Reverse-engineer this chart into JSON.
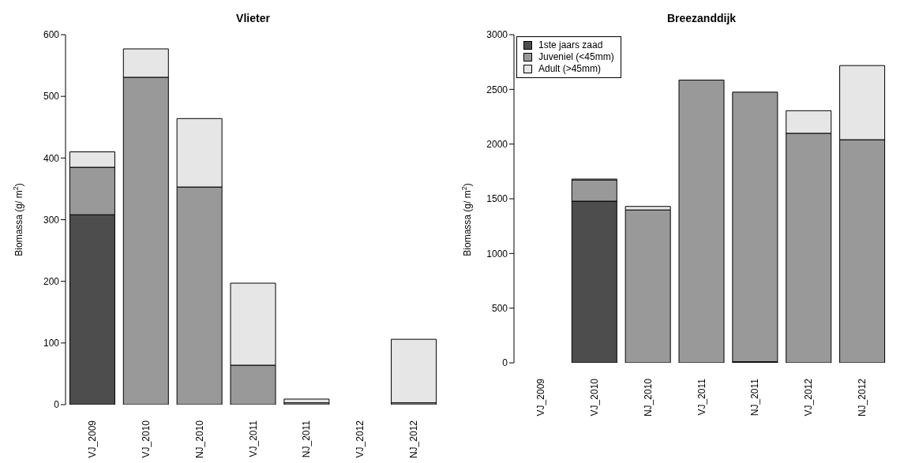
{
  "chart_data": [
    {
      "type": "bar",
      "title": "Vlieter",
      "ylabel": "Biomassa (g/ m$^{2}$)",
      "categories": [
        "VJ_2009",
        "VJ_2010",
        "NJ_2010",
        "VJ_2011",
        "NJ_2011",
        "VJ_2012",
        "NJ_2012"
      ],
      "stacked": true,
      "ylim": [
        0,
        600
      ],
      "yticks": [
        0,
        100,
        200,
        300,
        400,
        500,
        600
      ],
      "legend": false,
      "series": [
        {
          "color": "#4d4d4d",
          "values": [
            308,
            0,
            0,
            0,
            0,
            0,
            0
          ]
        },
        {
          "color": "#999999",
          "values": [
            77,
            531,
            353,
            64,
            3,
            0,
            3
          ]
        },
        {
          "color": "#e6e6e6",
          "values": [
            25,
            46,
            111,
            133,
            6,
            0,
            103
          ]
        }
      ]
    },
    {
      "type": "bar",
      "title": "Breezanddijk",
      "ylabel": "Biomassa (g/ m$^{2}$)",
      "categories": [
        "VJ_2009",
        "VJ_2010",
        "NJ_2010",
        "VJ_2011",
        "NJ_2011",
        "VJ_2012",
        "NJ_2012"
      ],
      "stacked": true,
      "ylim": [
        0,
        3000
      ],
      "yticks": [
        0,
        500,
        1000,
        1500,
        2000,
        2500,
        3000
      ],
      "legend": "top left",
      "series": [
        {
          "name": "1ste jaars zaad",
          "color": "#4d4d4d",
          "values": [
            0,
            1478,
            0,
            0,
            10,
            0,
            0
          ]
        },
        {
          "name": "Juveniel (<45mm)",
          "color": "#999999",
          "values": [
            0,
            194,
            1398,
            2585,
            2465,
            2099,
            2040
          ]
        },
        {
          "name": "Adult (>45mm)",
          "color": "#e6e6e6",
          "values": [
            0,
            8,
            32,
            0,
            0,
            206,
            678
          ]
        }
      ]
    }
  ]
}
